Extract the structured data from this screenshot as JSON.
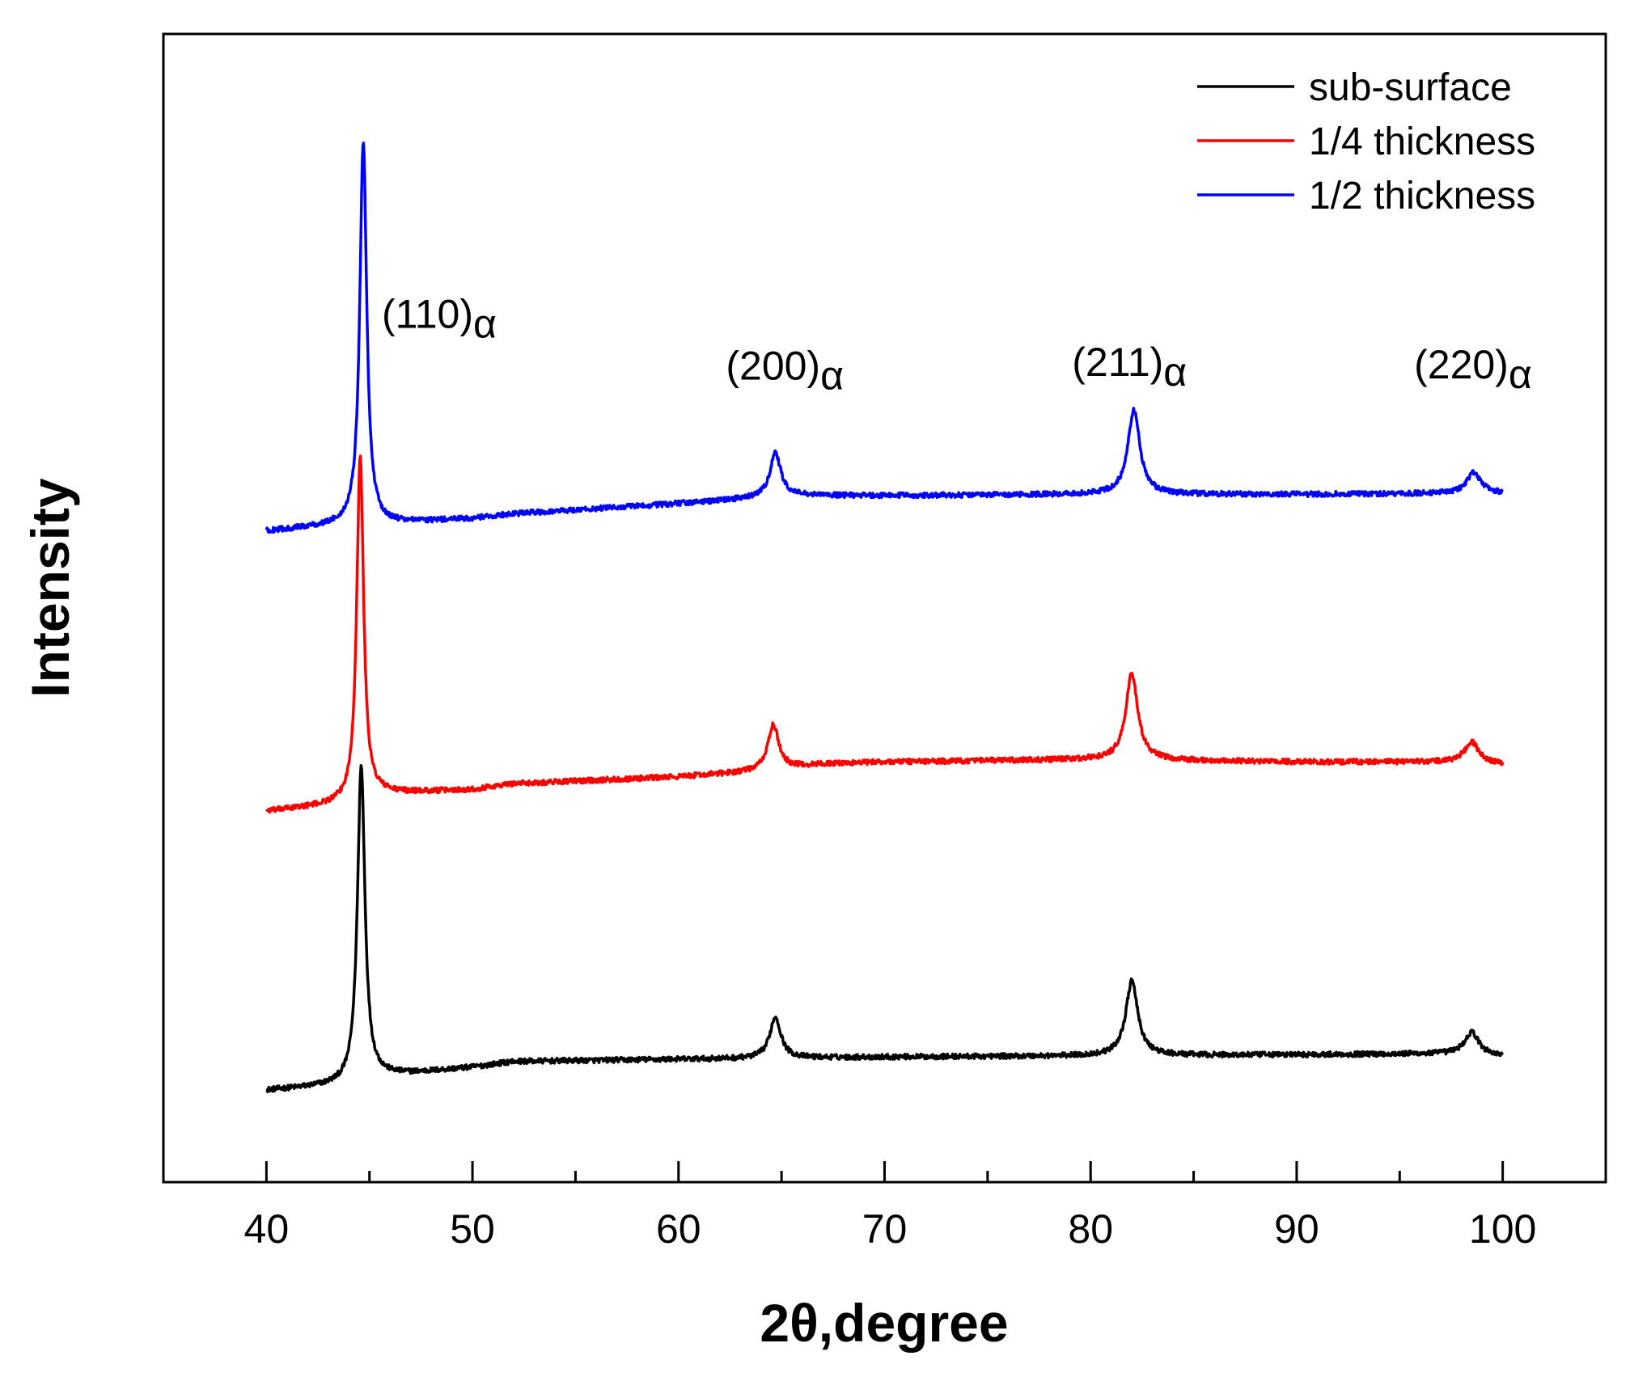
{
  "chart_data": {
    "type": "line",
    "title": "",
    "xlabel": "2θ,degree",
    "ylabel": "Intensity",
    "xlim": [
      35,
      105
    ],
    "ylim": [
      0,
      100
    ],
    "x_ticks": [
      40,
      50,
      60,
      70,
      80,
      90,
      100
    ],
    "y_ticks_shown": false,
    "grid": false,
    "legend_position": "top-right",
    "series": [
      {
        "name": "sub-surface",
        "color": "#000000",
        "baseline": [
          [
            40,
            8.0
          ],
          [
            44,
            8.5
          ],
          [
            45.5,
            9.2
          ],
          [
            50,
            10.0
          ],
          [
            52,
            10.5
          ],
          [
            60,
            10.7
          ],
          [
            70,
            10.9
          ],
          [
            80,
            11.0
          ],
          [
            90,
            11.1
          ],
          [
            98,
            11.2
          ],
          [
            100,
            11.0
          ]
        ],
        "peaks": [
          {
            "x": 44.6,
            "height": 27.5,
            "width": 0.22
          },
          {
            "x": 64.7,
            "height": 3.6,
            "width": 0.32
          },
          {
            "x": 82.0,
            "height": 6.5,
            "width": 0.35
          },
          {
            "x": 98.5,
            "height": 1.9,
            "width": 0.4
          }
        ]
      },
      {
        "name": "1/4 thickness",
        "color": "#ff0000",
        "baseline": [
          [
            40,
            32.3
          ],
          [
            44,
            33.0
          ],
          [
            45.5,
            33.8
          ],
          [
            50,
            34.2
          ],
          [
            52,
            34.7
          ],
          [
            60,
            35.3
          ],
          [
            64,
            35.8
          ],
          [
            67,
            36.4
          ],
          [
            70,
            36.6
          ],
          [
            80,
            36.8
          ],
          [
            90,
            36.6
          ],
          [
            98,
            36.6
          ],
          [
            100,
            36.4
          ]
        ],
        "peaks": [
          {
            "x": 44.55,
            "height": 30.0,
            "width": 0.2
          },
          {
            "x": 64.6,
            "height": 3.9,
            "width": 0.32
          },
          {
            "x": 82.0,
            "height": 7.5,
            "width": 0.35
          },
          {
            "x": 98.5,
            "height": 1.8,
            "width": 0.4
          }
        ]
      },
      {
        "name": "1/2 thickness",
        "color": "#0000ff",
        "baseline": [
          [
            40,
            56.7
          ],
          [
            44,
            57.3
          ],
          [
            45.5,
            57.3
          ],
          [
            50,
            57.8
          ],
          [
            52,
            58.2
          ],
          [
            60,
            59.1
          ],
          [
            64,
            59.6
          ],
          [
            66,
            59.8
          ],
          [
            70,
            59.8
          ],
          [
            80,
            59.9
          ],
          [
            90,
            59.9
          ],
          [
            98,
            60.0
          ],
          [
            100,
            60.0
          ]
        ],
        "peaks": [
          {
            "x": 44.7,
            "height": 33.5,
            "width": 0.2
          },
          {
            "x": 64.7,
            "height": 3.8,
            "width": 0.32
          },
          {
            "x": 82.1,
            "height": 7.3,
            "width": 0.35
          },
          {
            "x": 98.6,
            "height": 1.8,
            "width": 0.4
          }
        ]
      }
    ],
    "annotations": [
      {
        "base": "(110)",
        "sub": "α",
        "x": 45.6,
        "y": 74.4
      },
      {
        "base": "(200)",
        "sub": "α",
        "x": 62.3,
        "y": 69.9
      },
      {
        "base": "(211)",
        "sub": "α",
        "x": 79.1,
        "y": 70.2
      },
      {
        "base": "(220)",
        "sub": "α",
        "x": 95.7,
        "y": 70.0
      }
    ]
  }
}
